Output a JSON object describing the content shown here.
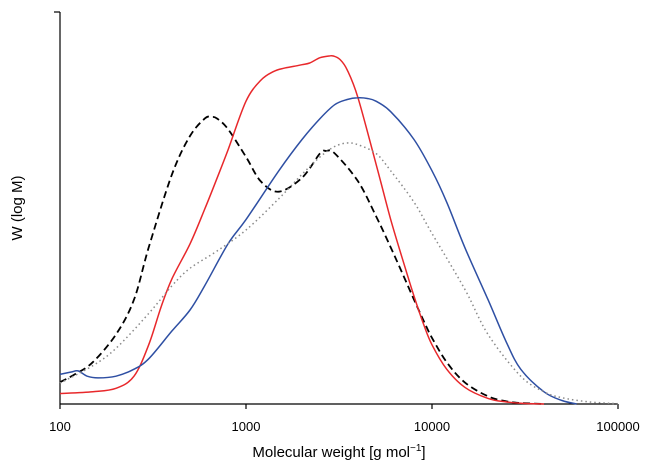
{
  "chart_data": {
    "type": "line",
    "title": "",
    "xlabel": "Molecular weight [g mol",
    "xlabel_sup": "−1",
    "xlabel_tail": "]",
    "ylabel": "W (log M)",
    "x_scale": "log",
    "xlim": [
      100,
      100000
    ],
    "ylim": [
      0,
      1.0
    ],
    "x_ticks": [
      100,
      1000,
      10000,
      100000
    ],
    "x_tick_labels": [
      "100",
      "1000",
      "10000",
      "100000"
    ],
    "y_tick_labels": [],
    "grid": false,
    "legend": "none",
    "series": [
      {
        "color": "#000000",
        "style": "dashed",
        "x": [
          100,
          120,
          150,
          200,
          250,
          300,
          400,
          500,
          600,
          650,
          700,
          800,
          1000,
          1200,
          1500,
          2000,
          2500,
          2700,
          3000,
          4000,
          5000,
          6000,
          7000,
          8000,
          9000,
          10000,
          12000,
          15000,
          20000,
          25000,
          30000,
          40000
        ],
        "y": [
          0.063,
          0.085,
          0.12,
          0.2,
          0.3,
          0.45,
          0.66,
          0.77,
          0.82,
          0.825,
          0.82,
          0.79,
          0.71,
          0.64,
          0.61,
          0.65,
          0.72,
          0.727,
          0.72,
          0.64,
          0.54,
          0.45,
          0.37,
          0.3,
          0.24,
          0.19,
          0.12,
          0.062,
          0.022,
          0.008,
          0.003,
          0.0
        ]
      },
      {
        "color": "#e8282b",
        "style": "solid",
        "x": [
          100,
          150,
          200,
          250,
          300,
          350,
          400,
          500,
          600,
          700,
          800,
          1000,
          1200,
          1400,
          1600,
          1800,
          2000,
          2200,
          2500,
          2800,
          2950,
          3200,
          3500,
          4000,
          5000,
          6000,
          7000,
          8000,
          9000,
          10000,
          12000,
          15000,
          20000,
          25000,
          30000,
          40000
        ],
        "y": [
          0.03,
          0.035,
          0.045,
          0.08,
          0.17,
          0.28,
          0.36,
          0.46,
          0.56,
          0.65,
          0.73,
          0.87,
          0.93,
          0.955,
          0.965,
          0.97,
          0.975,
          0.98,
          0.995,
          1.0,
          1.0,
          0.99,
          0.96,
          0.88,
          0.69,
          0.53,
          0.41,
          0.31,
          0.23,
          0.17,
          0.1,
          0.048,
          0.016,
          0.006,
          0.002,
          0.0
        ]
      },
      {
        "color": "#2e4fa3",
        "style": "solid",
        "x": [
          100,
          115,
          125,
          140,
          160,
          200,
          250,
          300,
          400,
          500,
          600,
          800,
          1000,
          1500,
          2000,
          2500,
          3000,
          3500,
          4000,
          4500,
          5000,
          6000,
          8000,
          10000,
          12000,
          15000,
          20000,
          25000,
          30000,
          40000,
          50000,
          60000
        ],
        "y": [
          0.085,
          0.092,
          0.095,
          0.08,
          0.075,
          0.08,
          0.1,
          0.13,
          0.21,
          0.27,
          0.34,
          0.46,
          0.53,
          0.67,
          0.76,
          0.82,
          0.86,
          0.875,
          0.88,
          0.878,
          0.87,
          0.84,
          0.76,
          0.67,
          0.58,
          0.45,
          0.3,
          0.18,
          0.1,
          0.035,
          0.01,
          0.0
        ]
      },
      {
        "color": "#8a8a8a",
        "style": "dotted",
        "x": [
          100,
          150,
          200,
          300,
          400,
          500,
          700,
          1000,
          1500,
          2000,
          2500,
          3000,
          3500,
          4000,
          5000,
          6000,
          8000,
          10000,
          15000,
          20000,
          30000,
          40000,
          50000,
          70000,
          100000
        ],
        "y": [
          0.06,
          0.11,
          0.16,
          0.26,
          0.34,
          0.39,
          0.44,
          0.5,
          0.59,
          0.66,
          0.71,
          0.74,
          0.75,
          0.745,
          0.72,
          0.67,
          0.58,
          0.49,
          0.33,
          0.2,
          0.08,
          0.035,
          0.018,
          0.006,
          0.001
        ]
      }
    ]
  }
}
